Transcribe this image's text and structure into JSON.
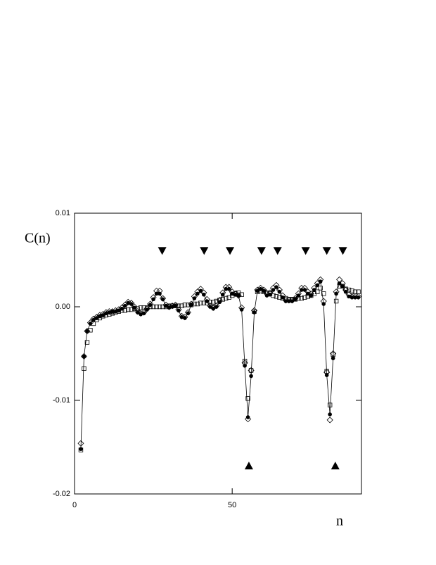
{
  "chart_data": {
    "type": "scatter",
    "ylabel": "C(n)",
    "xlabel": "n",
    "xlim": [
      0,
      91
    ],
    "ylim": [
      -0.02,
      0.01
    ],
    "xticks": [
      0,
      50
    ],
    "yticks": [
      {
        "value": -0.02,
        "label": "-0.02"
      },
      {
        "value": -0.01,
        "label": "-0.01"
      },
      {
        "value": 0,
        "label": "0.00"
      },
      0.01
    ],
    "series": [
      {
        "marker": "square",
        "color": "#000000",
        "x": [
          2,
          3,
          4,
          5,
          6,
          7,
          8,
          9,
          10,
          11,
          12,
          13,
          14,
          15,
          16,
          17,
          18,
          19,
          20,
          21,
          22,
          23,
          24,
          25,
          26,
          27,
          28,
          29,
          30,
          31,
          32,
          33,
          34,
          35,
          36,
          37,
          38,
          39,
          40,
          41,
          42,
          43,
          44,
          45,
          46,
          47,
          48,
          49,
          50,
          51,
          52,
          53,
          54,
          55,
          56,
          57,
          58,
          59,
          60,
          61,
          62,
          63,
          64,
          65,
          66,
          67,
          68,
          69,
          70,
          71,
          72,
          73,
          74,
          75,
          76,
          77,
          78,
          79,
          80,
          81,
          82,
          83,
          84,
          85,
          86,
          87,
          88,
          89,
          90
        ],
        "values": [
          -0.0153,
          -0.0066,
          -0.0038,
          -0.0025,
          -0.0018,
          -0.0014,
          -0.0012,
          -0.001,
          -0.0009,
          -0.0008,
          -0.0007,
          -0.0006,
          -0.0005,
          -0.0004,
          -0.0004,
          -0.0003,
          -0.0003,
          -0.0002,
          -0.0002,
          -0.0001,
          -0.0001,
          -0.0001,
          0,
          0,
          0,
          0,
          0,
          0,
          0.0001,
          0.0001,
          0.0001,
          0.0001,
          0.0001,
          0.0002,
          0.0002,
          0.0002,
          0.0003,
          0.0003,
          0.0004,
          0.0004,
          0.0004,
          0.0005,
          0.0005,
          0.0006,
          0.0007,
          0.0008,
          0.0009,
          0.001,
          0.0012,
          0.0014,
          0.0015,
          0.0013,
          -0.0058,
          -0.0098,
          -0.0068,
          -0.0005,
          0.0016,
          0.0017,
          0.0016,
          0.0015,
          0.0014,
          0.0012,
          0.0011,
          0.001,
          0.0009,
          0.0009,
          0.0008,
          0.0008,
          0.0008,
          0.0009,
          0.0009,
          0.001,
          0.0011,
          0.0012,
          0.0014,
          0.0016,
          0.002,
          0.0014,
          -0.0069,
          -0.0105,
          -0.0051,
          0.0006,
          0.0022,
          0.0022,
          0.0019,
          0.0018,
          0.0017,
          0.0016,
          0.0016
        ]
      },
      {
        "marker": "diamond",
        "color": "#000000",
        "x": [
          2,
          3,
          4,
          5,
          6,
          7,
          8,
          9,
          10,
          11,
          12,
          13,
          14,
          15,
          16,
          17,
          18,
          19,
          20,
          21,
          22,
          23,
          24,
          25,
          26,
          27,
          28,
          29,
          30,
          31,
          32,
          33,
          34,
          35,
          36,
          37,
          38,
          39,
          40,
          41,
          42,
          43,
          44,
          45,
          46,
          47,
          48,
          49,
          50,
          51,
          52,
          53,
          54,
          55,
          56,
          57,
          58,
          59,
          60,
          61,
          62,
          63,
          64,
          65,
          66,
          67,
          68,
          69,
          70,
          71,
          72,
          73,
          74,
          75,
          76,
          77,
          78,
          79,
          80,
          81,
          82,
          83,
          84,
          85,
          86,
          87,
          88,
          89,
          90
        ],
        "values": [
          -0.0146,
          -0.0053,
          -0.0026,
          -0.0017,
          -0.0013,
          -0.0011,
          -0.0009,
          -0.0008,
          -0.0006,
          -0.0005,
          -0.0005,
          -0.0004,
          -0.0003,
          -0.0001,
          0.0002,
          0.0005,
          0.0004,
          0,
          -0.0005,
          -0.0007,
          -0.0006,
          -0.0002,
          0.0003,
          0.001,
          0.0017,
          0.0017,
          0.0009,
          0.0002,
          0,
          0.0001,
          0.0002,
          -0.0003,
          -0.001,
          -0.0011,
          -0.0006,
          0.0003,
          0.0011,
          0.0016,
          0.0019,
          0.0015,
          0.0008,
          0.0001,
          -0.0001,
          0.0001,
          0.0007,
          0.0015,
          0.0021,
          0.0021,
          0.0016,
          0.0014,
          0.0012,
          -0.0001,
          -0.006,
          -0.012,
          -0.0068,
          -0.0004,
          0.0018,
          0.002,
          0.0018,
          0.0014,
          0.0015,
          0.002,
          0.0023,
          0.0018,
          0.0012,
          0.0007,
          0.0007,
          0.0007,
          0.0009,
          0.0014,
          0.002,
          0.002,
          0.0016,
          0.0014,
          0.002,
          0.0025,
          0.0029,
          0.0006,
          -0.007,
          -0.0121,
          -0.005,
          0.0016,
          0.0029,
          0.0025,
          0.0018,
          0.0013,
          0.0011,
          0.0011,
          0.0011
        ]
      },
      {
        "marker": "circle",
        "line": true,
        "color": "#000000",
        "x": [
          2,
          3,
          4,
          5,
          6,
          7,
          8,
          9,
          10,
          11,
          12,
          13,
          14,
          15,
          16,
          17,
          18,
          19,
          20,
          21,
          22,
          23,
          24,
          25,
          26,
          27,
          28,
          29,
          30,
          31,
          32,
          33,
          34,
          35,
          36,
          37,
          38,
          39,
          40,
          41,
          42,
          43,
          44,
          45,
          46,
          47,
          48,
          49,
          50,
          51,
          52,
          53,
          54,
          55,
          56,
          57,
          58,
          59,
          60,
          61,
          62,
          63,
          64,
          65,
          66,
          67,
          68,
          69,
          70,
          71,
          72,
          73,
          74,
          75,
          76,
          77,
          78,
          79,
          80,
          81,
          82,
          83,
          84,
          85,
          86,
          87,
          88,
          89,
          90
        ],
        "values": [
          -0.0152,
          -0.0053,
          -0.0026,
          -0.0018,
          -0.0014,
          -0.0012,
          -0.001,
          -0.0009,
          -0.0007,
          -0.0006,
          -0.0005,
          -0.0005,
          -0.0004,
          -0.0002,
          0.0001,
          0.0004,
          0.0003,
          -0.0001,
          -0.0006,
          -0.0008,
          -0.0007,
          -0.0003,
          0.0002,
          0.0008,
          0.0014,
          0.0014,
          0.0008,
          0.0001,
          -0.0001,
          0,
          0.0001,
          -0.0004,
          -0.0011,
          -0.0012,
          -0.0007,
          0.0002,
          0.0009,
          0.0014,
          0.0017,
          0.0013,
          0.0006,
          0,
          -0.0002,
          0,
          0.0005,
          0.0013,
          0.0019,
          0.0019,
          0.0014,
          0.0013,
          0.0012,
          -0.0003,
          -0.0063,
          -0.0118,
          -0.0074,
          -0.0006,
          0.0017,
          0.0019,
          0.0017,
          0.0012,
          0.0013,
          0.0018,
          0.0021,
          0.0016,
          0.001,
          0.0006,
          0.0006,
          0.0006,
          0.0008,
          0.0012,
          0.0018,
          0.0018,
          0.0014,
          0.0012,
          0.0018,
          0.0023,
          0.0027,
          0.0003,
          -0.0073,
          -0.0115,
          -0.0055,
          0.0014,
          0.0025,
          0.0022,
          0.0016,
          0.0011,
          0.001,
          0.001,
          0.001
        ]
      },
      {
        "marker": "triangle-down",
        "color": "#000000",
        "x": [
          27.8,
          41.1,
          49.3,
          59.3,
          64.4,
          73.3,
          80,
          85.1
        ],
        "values": [
          0.006,
          0.006,
          0.006,
          0.006,
          0.006,
          0.006,
          0.006,
          0.006
        ]
      },
      {
        "marker": "triangle-up",
        "color": "#000000",
        "x": [
          55.3,
          82.7
        ],
        "values": [
          -0.017,
          -0.017
        ]
      }
    ]
  }
}
